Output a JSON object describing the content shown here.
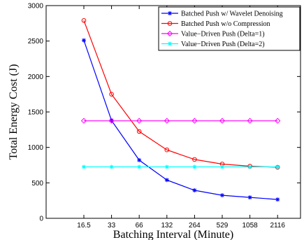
{
  "chart_data": {
    "type": "line",
    "title": "",
    "xlabel": "Batching Interval (Minute)",
    "ylabel": "Total Energy Cost (J)",
    "categories": [
      "16.5",
      "33",
      "66",
      "132",
      "264",
      "529",
      "1058",
      "2116"
    ],
    "ylim": [
      0,
      3000
    ],
    "yticks": [
      0,
      500,
      1000,
      1500,
      2000,
      2500,
      3000
    ],
    "grid": false,
    "legend_position": "top-right",
    "series": [
      {
        "name": "Batched Push w/ Wavelet Denoising",
        "color": "#0000ff",
        "marker": "asterisk",
        "values": [
          2510,
          1380,
          820,
          540,
          395,
          325,
          295,
          265
        ]
      },
      {
        "name": "Batched Push w/o Compression",
        "color": "#ff0000",
        "marker": "circle",
        "values": [
          2790,
          1750,
          1225,
          965,
          830,
          765,
          735,
          720
        ]
      },
      {
        "name": "Value−Driven Push (Delta=1)",
        "color": "#ff00ff",
        "marker": "diamond",
        "values": [
          1375,
          1375,
          1375,
          1375,
          1375,
          1375,
          1375,
          1375
        ]
      },
      {
        "name": "Value−Driven Push (Delta=2)",
        "color": "#00ffff",
        "marker": "asterisk",
        "values": [
          725,
          725,
          725,
          725,
          725,
          725,
          725,
          725
        ]
      }
    ]
  }
}
